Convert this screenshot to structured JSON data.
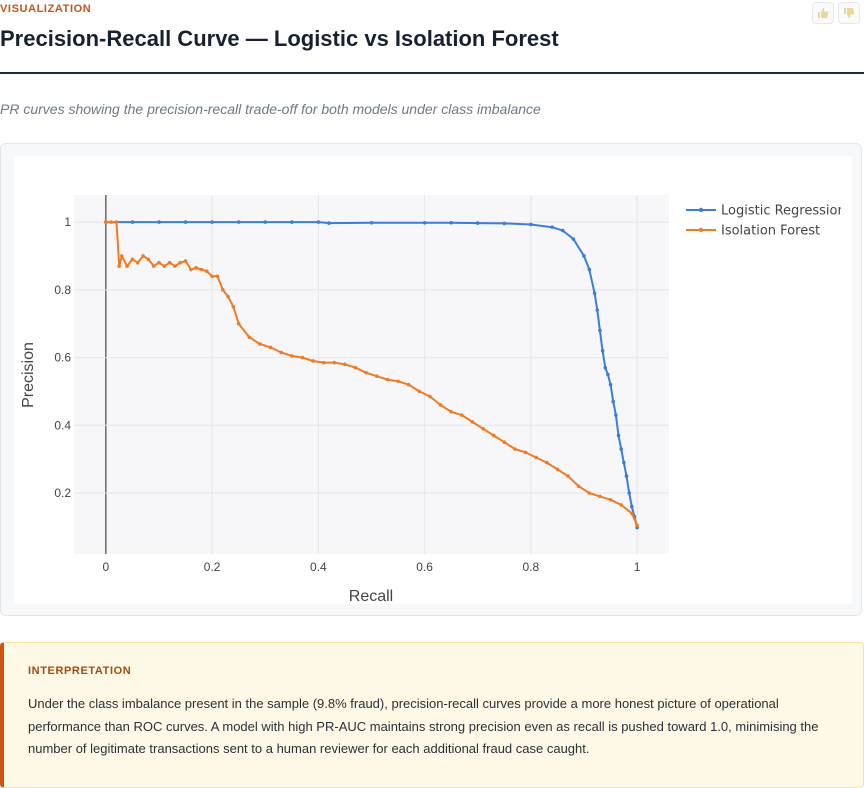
{
  "header": {
    "kicker": "VISUALIZATION",
    "title": "Precision-Recall Curve — Logistic vs Isolation Forest",
    "thumbs_up_icon": "thumbs-up-icon",
    "thumbs_down_icon": "thumbs-down-icon",
    "subtitle": "PR curves showing the precision-recall trade-off for both models under class imbalance"
  },
  "chart_data": {
    "type": "line",
    "title": "",
    "xlabel": "Recall",
    "ylabel": "Precision",
    "xlim": [
      -0.06,
      1.06
    ],
    "ylim": [
      0.02,
      1.08
    ],
    "xticks": [
      0,
      0.2,
      0.4,
      0.6,
      0.8,
      1
    ],
    "xtick_labels": [
      "0",
      "0.2",
      "0.4",
      "0.6",
      "0.8",
      "1"
    ],
    "yticks": [
      0.2,
      0.4,
      0.6,
      0.8,
      1
    ],
    "ytick_labels": [
      "0.2",
      "0.4",
      "0.6",
      "0.8",
      "1"
    ],
    "grid": true,
    "legend_position": "top-right",
    "series": [
      {
        "name": "Logistic Regression",
        "color": "#3b7dd8",
        "x": [
          0,
          0.05,
          0.1,
          0.15,
          0.2,
          0.25,
          0.3,
          0.35,
          0.4,
          0.42,
          0.5,
          0.6,
          0.65,
          0.7,
          0.75,
          0.8,
          0.84,
          0.86,
          0.88,
          0.9,
          0.91,
          0.92,
          0.925,
          0.93,
          0.935,
          0.94,
          0.945,
          0.95,
          0.955,
          0.96,
          0.965,
          0.97,
          0.975,
          0.98,
          0.985,
          0.99,
          0.995,
          1.0
        ],
        "y": [
          1.0,
          1.0,
          1.0,
          1.0,
          1.0,
          1.0,
          1.0,
          1.0,
          1.0,
          0.997,
          0.998,
          0.998,
          0.998,
          0.997,
          0.996,
          0.993,
          0.985,
          0.975,
          0.95,
          0.9,
          0.86,
          0.79,
          0.74,
          0.68,
          0.62,
          0.57,
          0.55,
          0.52,
          0.47,
          0.43,
          0.37,
          0.33,
          0.29,
          0.25,
          0.2,
          0.16,
          0.13,
          0.098
        ]
      },
      {
        "name": "Isolation Forest",
        "color": "#f07b27",
        "x": [
          0,
          0.01,
          0.02,
          0.025,
          0.03,
          0.04,
          0.05,
          0.06,
          0.07,
          0.08,
          0.09,
          0.1,
          0.11,
          0.12,
          0.13,
          0.14,
          0.15,
          0.16,
          0.17,
          0.18,
          0.19,
          0.2,
          0.21,
          0.22,
          0.23,
          0.24,
          0.25,
          0.27,
          0.29,
          0.31,
          0.33,
          0.35,
          0.37,
          0.39,
          0.41,
          0.43,
          0.45,
          0.47,
          0.49,
          0.51,
          0.53,
          0.55,
          0.57,
          0.59,
          0.61,
          0.63,
          0.65,
          0.67,
          0.69,
          0.71,
          0.73,
          0.75,
          0.77,
          0.79,
          0.81,
          0.83,
          0.85,
          0.87,
          0.89,
          0.91,
          0.93,
          0.95,
          0.97,
          0.99,
          1.0
        ],
        "y": [
          1.0,
          1.0,
          1.0,
          0.87,
          0.9,
          0.87,
          0.89,
          0.88,
          0.9,
          0.89,
          0.87,
          0.88,
          0.87,
          0.88,
          0.87,
          0.88,
          0.885,
          0.86,
          0.865,
          0.86,
          0.855,
          0.84,
          0.84,
          0.8,
          0.78,
          0.75,
          0.7,
          0.66,
          0.64,
          0.63,
          0.615,
          0.605,
          0.6,
          0.59,
          0.585,
          0.585,
          0.58,
          0.57,
          0.555,
          0.545,
          0.535,
          0.53,
          0.52,
          0.5,
          0.485,
          0.46,
          0.44,
          0.43,
          0.41,
          0.39,
          0.37,
          0.35,
          0.33,
          0.32,
          0.305,
          0.29,
          0.27,
          0.25,
          0.22,
          0.2,
          0.19,
          0.18,
          0.165,
          0.14,
          0.105
        ]
      }
    ]
  },
  "interpretation": {
    "title": "INTERPRETATION",
    "body": "Under the class imbalance present in the sample (9.8% fraud), precision-recall curves provide a more honest picture of operational performance than ROC curves. A model with high PR-AUC maintains strong precision even as recall is pushed toward 1.0, minimising the number of legitimate transactions sent to a human reviewer for each additional fraud case caught."
  }
}
